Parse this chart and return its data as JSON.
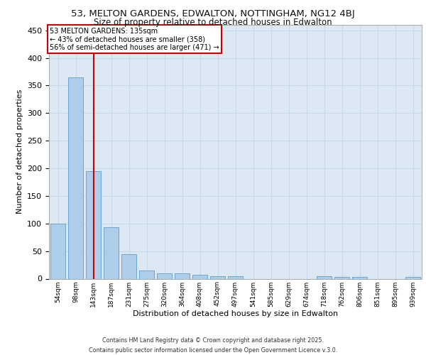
{
  "title_line1": "53, MELTON GARDENS, EDWALTON, NOTTINGHAM, NG12 4BJ",
  "title_line2": "Size of property relative to detached houses in Edwalton",
  "xlabel": "Distribution of detached houses by size in Edwalton",
  "ylabel": "Number of detached properties",
  "categories": [
    "54sqm",
    "98sqm",
    "143sqm",
    "187sqm",
    "231sqm",
    "275sqm",
    "320sqm",
    "364sqm",
    "408sqm",
    "452sqm",
    "497sqm",
    "541sqm",
    "585sqm",
    "629sqm",
    "674sqm",
    "718sqm",
    "762sqm",
    "806sqm",
    "851sqm",
    "895sqm",
    "939sqm"
  ],
  "values": [
    100,
    365,
    195,
    93,
    45,
    15,
    10,
    10,
    7,
    5,
    5,
    0,
    0,
    0,
    0,
    5,
    3,
    3,
    0,
    0,
    3
  ],
  "bar_color": "#aecde8",
  "bar_edgecolor": "#5a9fd4",
  "grid_color": "#c8d8e8",
  "background_color": "#dce9f5",
  "vline_x_index": 2,
  "vline_color": "#cc0000",
  "annotation_text": "53 MELTON GARDENS: 135sqm\n← 43% of detached houses are smaller (358)\n56% of semi-detached houses are larger (471) →",
  "annotation_box_color": "#cc0000",
  "annotation_bg": "#ffffff",
  "ylim": [
    0,
    460
  ],
  "yticks": [
    0,
    50,
    100,
    150,
    200,
    250,
    300,
    350,
    400,
    450
  ],
  "footer_line1": "Contains HM Land Registry data © Crown copyright and database right 2025.",
  "footer_line2": "Contains public sector information licensed under the Open Government Licence v.3.0."
}
